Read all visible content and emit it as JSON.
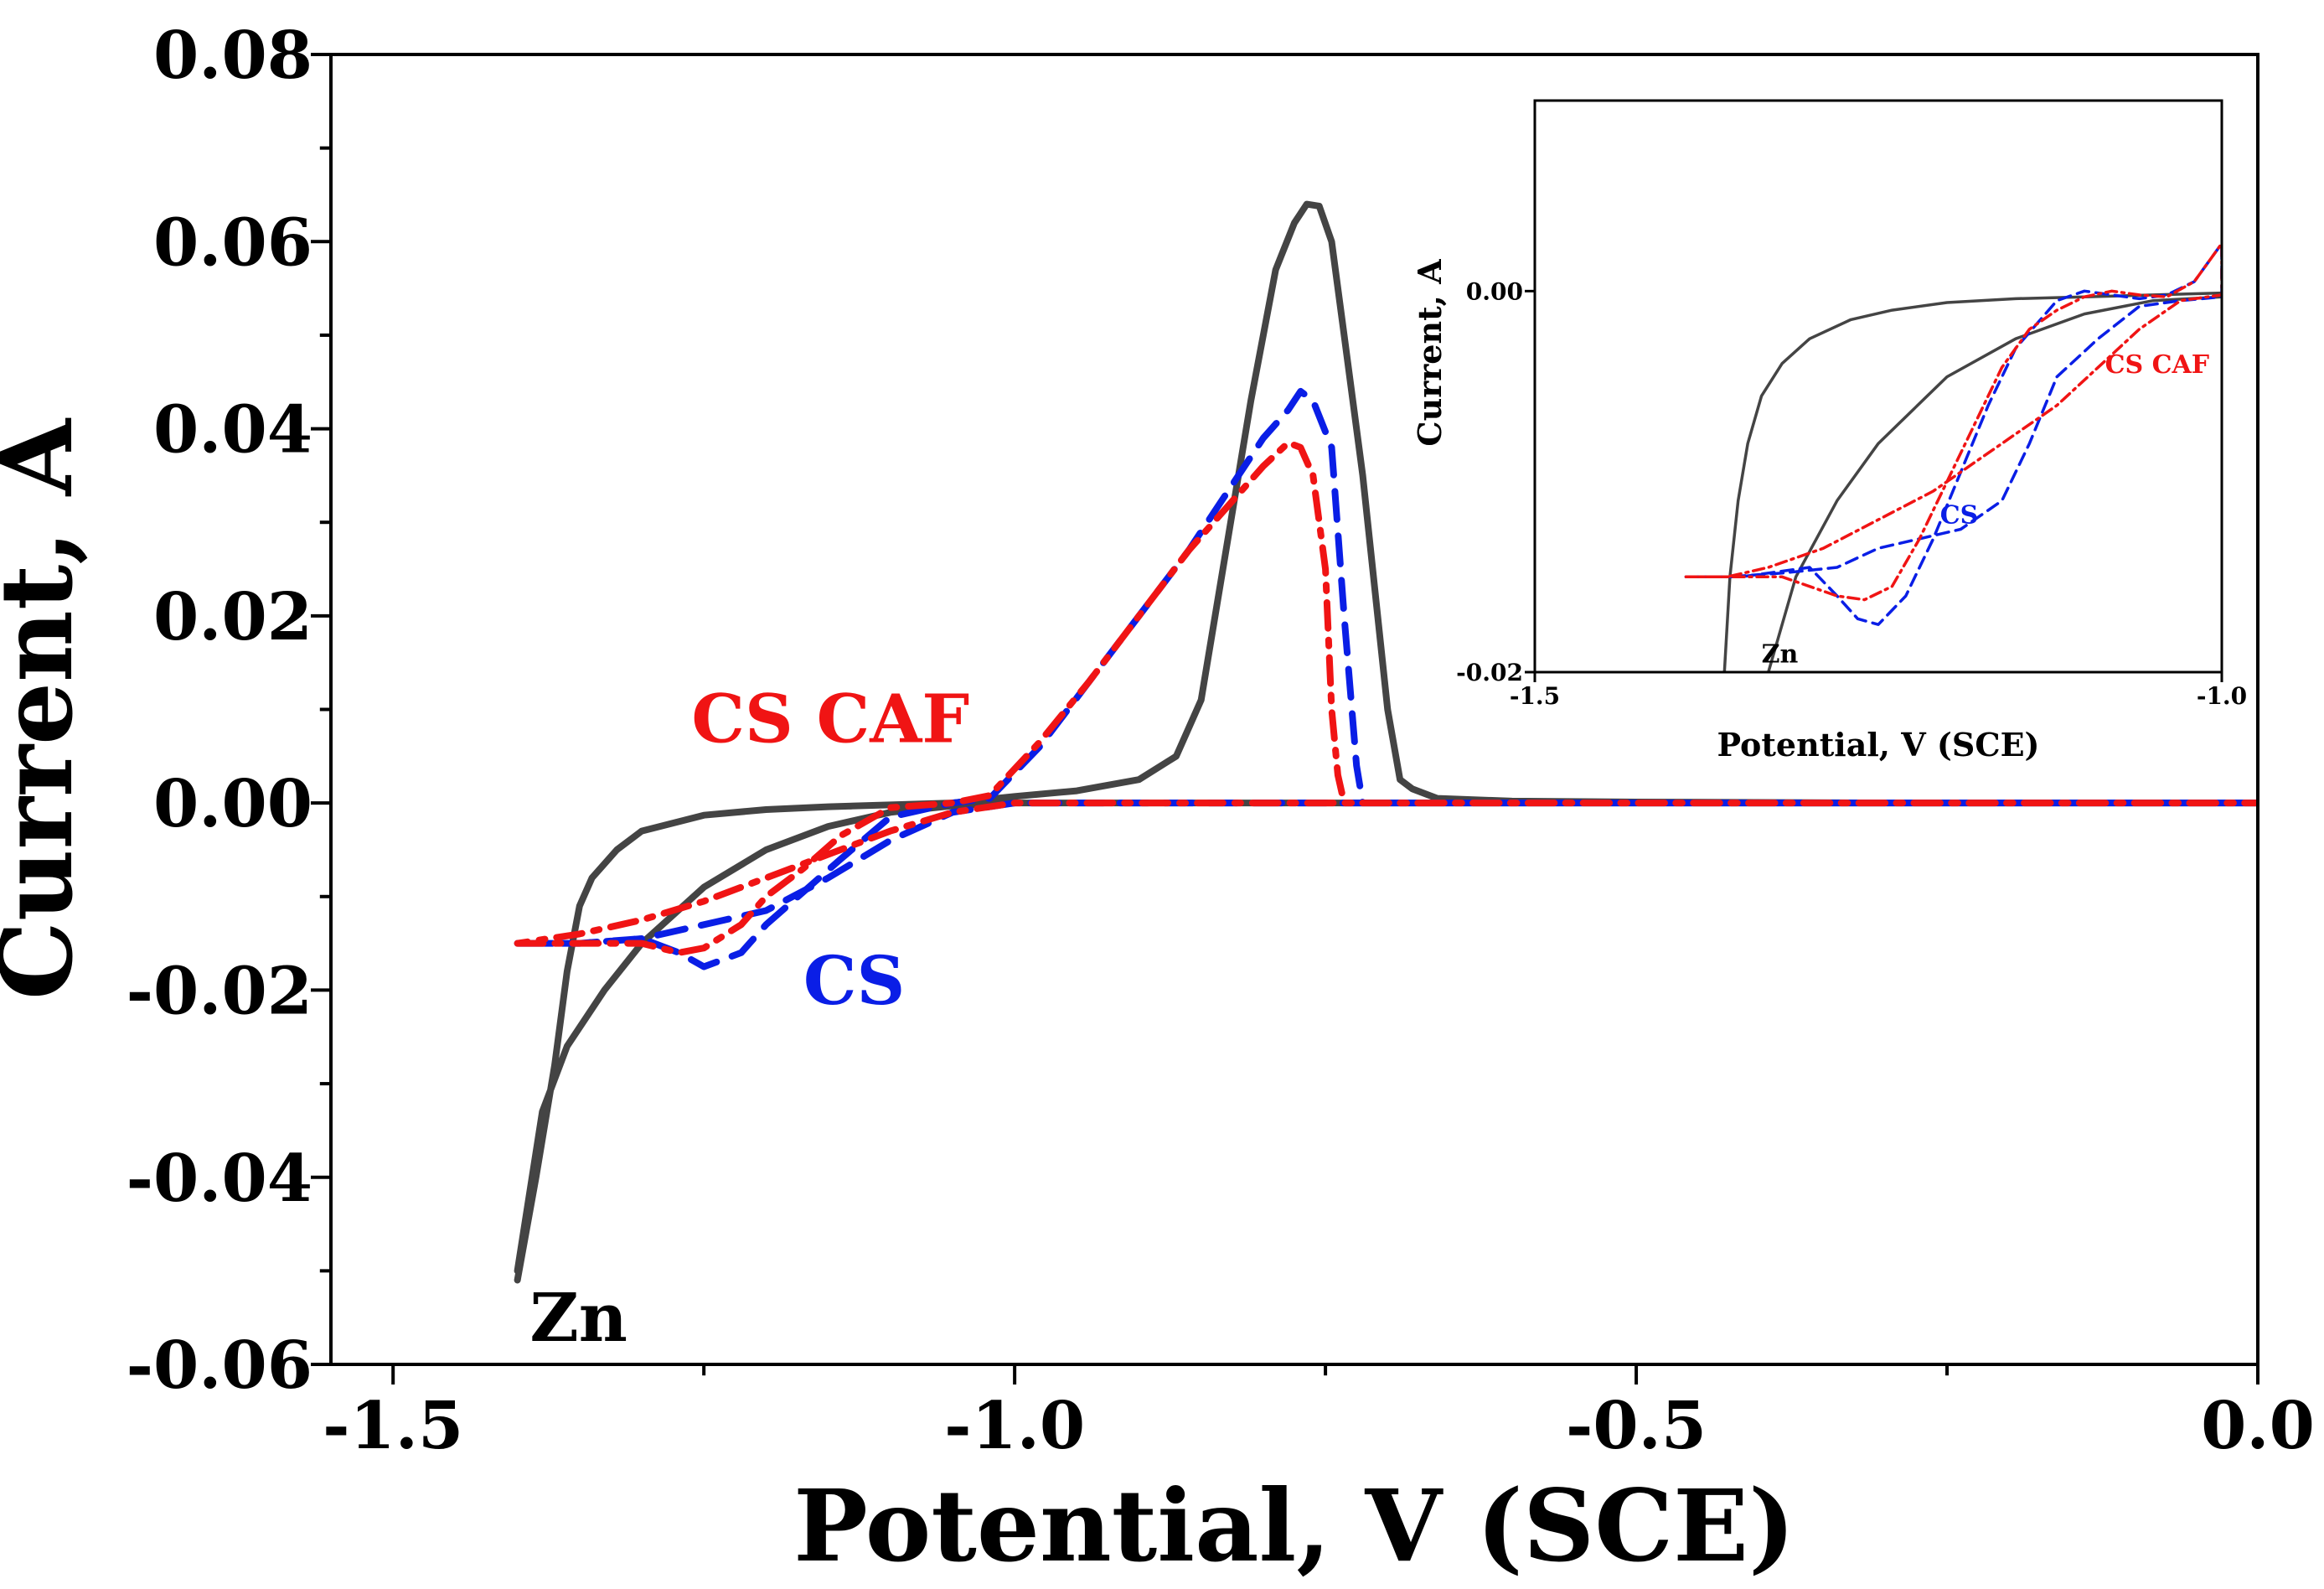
{
  "chart_data": [
    {
      "id": "main",
      "type": "line",
      "title": "",
      "xlabel": "Potential, V  (SCE)",
      "ylabel": "Current, A",
      "xlim": [
        -1.55,
        0.0
      ],
      "ylim": [
        -0.06,
        0.08
      ],
      "xticks": [
        -1.5,
        -1.0,
        -0.5,
        0.0
      ],
      "xtick_labels": [
        "-1.5",
        "-1.0",
        "-0.5",
        "0.0"
      ],
      "yticks": [
        -0.06,
        -0.04,
        -0.02,
        0.0,
        0.02,
        0.04,
        0.06,
        0.08
      ],
      "ytick_labels": [
        "-0.06",
        "-0.04",
        "-0.02",
        "0.00",
        "0.02",
        "0.04",
        "0.06",
        "0.08"
      ],
      "grid": false,
      "series": [
        {
          "name": "Zn",
          "label": "Zn",
          "color": "#444444",
          "style": "solid",
          "x": [
            -1.4,
            -1.385,
            -1.37,
            -1.36,
            -1.35,
            -1.34,
            -1.32,
            -1.3,
            -1.25,
            -1.2,
            -1.15,
            -1.1,
            -1.05,
            -1.0,
            -0.95,
            -0.9,
            -0.87,
            -0.85,
            -0.83,
            -0.81,
            -0.79,
            -0.775,
            -0.765,
            -0.755,
            -0.745,
            -0.735,
            -0.72,
            -0.7,
            -0.69,
            -0.68,
            -0.66,
            -0.6,
            -0.5,
            -0.3,
            0.0,
            0.0,
            -0.3,
            -0.5,
            -0.6,
            -0.7,
            -0.8,
            -0.9,
            -1.0,
            -1.05,
            -1.1,
            -1.15,
            -1.2,
            -1.25,
            -1.3,
            -1.33,
            -1.36,
            -1.38,
            -1.4
          ],
          "y": [
            -0.051,
            -0.04,
            -0.028,
            -0.018,
            -0.011,
            -0.008,
            -0.005,
            -0.003,
            -0.0013,
            -0.0007,
            -0.0004,
            -0.0002,
            0.0,
            0.0007,
            0.0013,
            0.0025,
            0.005,
            0.011,
            0.027,
            0.043,
            0.057,
            0.062,
            0.064,
            0.0638,
            0.06,
            0.05,
            0.035,
            0.01,
            0.0025,
            0.0015,
            0.0005,
            0.0002,
            0.0001,
            0.0,
            0.0,
            0.0,
            0.0,
            0.0,
            0.0,
            0.0,
            0.0,
            0.0,
            0.0,
            -0.0003,
            -0.001,
            -0.0025,
            -0.005,
            -0.009,
            -0.015,
            -0.02,
            -0.026,
            -0.033,
            -0.05
          ]
        },
        {
          "name": "CS",
          "label": "CS",
          "color": "#0a1ee6",
          "style": "dashed",
          "x": [
            -1.4,
            -1.35,
            -1.3,
            -1.27,
            -1.25,
            -1.22,
            -1.2,
            -1.17,
            -1.14,
            -1.1,
            -1.05,
            -1.02,
            -0.98,
            -0.94,
            -0.9,
            -0.86,
            -0.82,
            -0.8,
            -0.78,
            -0.77,
            -0.76,
            -0.745,
            -0.735,
            -0.725,
            -0.72,
            0.0,
            0.0,
            -0.5,
            -1.0,
            -1.05,
            -1.1,
            -1.15,
            -1.2,
            -1.25,
            -1.3,
            -1.35,
            -1.4
          ],
          "y": [
            -0.015,
            -0.015,
            -0.0145,
            -0.016,
            -0.0175,
            -0.016,
            -0.013,
            -0.0095,
            -0.006,
            -0.0015,
            0.0,
            0.0005,
            0.006,
            0.013,
            0.02,
            0.027,
            0.035,
            0.039,
            0.042,
            0.044,
            0.043,
            0.038,
            0.02,
            0.004,
            0.0,
            0.0,
            0.0,
            0.0,
            0.0,
            -0.001,
            -0.004,
            -0.008,
            -0.0115,
            -0.013,
            -0.0145,
            -0.015,
            -0.015
          ]
        },
        {
          "name": "CS CAF",
          "label": "CS CAF",
          "color": "#f01414",
          "style": "dashdot",
          "x": [
            -1.4,
            -1.35,
            -1.3,
            -1.27,
            -1.25,
            -1.22,
            -1.2,
            -1.17,
            -1.14,
            -1.1,
            -1.05,
            -1.02,
            -0.98,
            -0.94,
            -0.9,
            -0.86,
            -0.82,
            -0.8,
            -0.78,
            -0.77,
            -0.76,
            -0.75,
            -0.745,
            -0.74,
            -0.735,
            0.0,
            0.0,
            -0.5,
            -1.0,
            -1.05,
            -1.1,
            -1.15,
            -1.2,
            -1.25,
            -1.3,
            -1.35,
            -1.4
          ],
          "y": [
            -0.015,
            -0.015,
            -0.015,
            -0.016,
            -0.0155,
            -0.013,
            -0.01,
            -0.007,
            -0.0035,
            -0.0005,
            0.0,
            0.0008,
            0.0065,
            0.013,
            0.02,
            0.027,
            0.033,
            0.036,
            0.0385,
            0.038,
            0.035,
            0.025,
            0.01,
            0.003,
            0.0,
            0.0,
            0.0,
            0.0,
            0.0,
            -0.001,
            -0.003,
            -0.0055,
            -0.008,
            -0.0105,
            -0.0125,
            -0.014,
            -0.015
          ]
        }
      ]
    },
    {
      "id": "inset",
      "type": "line",
      "title": "",
      "xlabel": "Potential, V  (SCE)",
      "ylabel": "Current, A",
      "xlim": [
        -1.5,
        -1.0
      ],
      "ylim": [
        -0.02,
        0.01
      ],
      "xticks": [
        -1.5,
        -1.0
      ],
      "xtick_labels": [
        "-1.5",
        "-1.0"
      ],
      "yticks": [
        -0.02,
        0.0
      ],
      "ytick_labels": [
        "-0.02",
        "0.00"
      ],
      "grid": false,
      "series": [
        {
          "name": "Zn",
          "label": "Zn",
          "color": "#444444",
          "style": "solid",
          "x": [
            -1.362,
            -1.358,
            -1.352,
            -1.345,
            -1.335,
            -1.32,
            -1.3,
            -1.27,
            -1.24,
            -1.2,
            -1.15,
            -1.1,
            -1.05,
            -1.0,
            -1.0,
            -1.05,
            -1.1,
            -1.15,
            -1.2,
            -1.25,
            -1.28,
            -1.31,
            -1.33
          ],
          "y": [
            -0.02,
            -0.015,
            -0.011,
            -0.008,
            -0.0055,
            -0.0038,
            -0.0025,
            -0.0015,
            -0.001,
            -0.0006,
            -0.0004,
            -0.0003,
            -0.0002,
            -0.0001,
            -0.0003,
            -0.0005,
            -0.0012,
            -0.0025,
            -0.0045,
            -0.008,
            -0.011,
            -0.015,
            -0.02
          ]
        },
        {
          "name": "CS",
          "label": "CS",
          "color": "#0a1ee6",
          "style": "dashed",
          "x": [
            -1.39,
            -1.35,
            -1.3,
            -1.28,
            -1.265,
            -1.25,
            -1.23,
            -1.21,
            -1.19,
            -1.17,
            -1.15,
            -1.12,
            -1.1,
            -1.08,
            -1.06,
            -1.04,
            -1.02,
            -1.0,
            -1.0,
            -1.03,
            -1.06,
            -1.09,
            -1.12,
            -1.14,
            -1.16,
            -1.19,
            -1.22,
            -1.25,
            -1.28,
            -1.32,
            -1.36,
            -1.39
          ],
          "y": [
            -0.015,
            -0.015,
            -0.0145,
            -0.016,
            -0.0172,
            -0.0175,
            -0.016,
            -0.013,
            -0.0095,
            -0.006,
            -0.003,
            -0.0005,
            0.0,
            -0.0002,
            -0.0004,
            -0.0002,
            0.0005,
            0.0025,
            -0.0003,
            -0.0005,
            -0.0008,
            -0.0025,
            -0.0045,
            -0.008,
            -0.011,
            -0.0125,
            -0.013,
            -0.0135,
            -0.0145,
            -0.0148,
            -0.015,
            -0.015
          ]
        },
        {
          "name": "CS CAF",
          "label": "CS CAF",
          "color": "#f01414",
          "style": "dashdot",
          "x": [
            -1.39,
            -1.35,
            -1.32,
            -1.3,
            -1.28,
            -1.26,
            -1.24,
            -1.22,
            -1.2,
            -1.18,
            -1.16,
            -1.14,
            -1.12,
            -1.1,
            -1.08,
            -1.06,
            -1.04,
            -1.02,
            -1.0,
            -1.0,
            -1.03,
            -1.06,
            -1.09,
            -1.12,
            -1.15,
            -1.18,
            -1.21,
            -1.25,
            -1.29,
            -1.33,
            -1.36,
            -1.39
          ],
          "y": [
            -0.015,
            -0.015,
            -0.015,
            -0.0155,
            -0.016,
            -0.0162,
            -0.0155,
            -0.013,
            -0.01,
            -0.007,
            -0.004,
            -0.002,
            -0.001,
            -0.0003,
            0.0,
            -0.0002,
            -0.0003,
            0.0005,
            0.0025,
            -0.0002,
            -0.0005,
            -0.002,
            -0.004,
            -0.006,
            -0.0075,
            -0.009,
            -0.0105,
            -0.012,
            -0.0135,
            -0.0145,
            -0.015,
            -0.015
          ]
        }
      ]
    }
  ]
}
